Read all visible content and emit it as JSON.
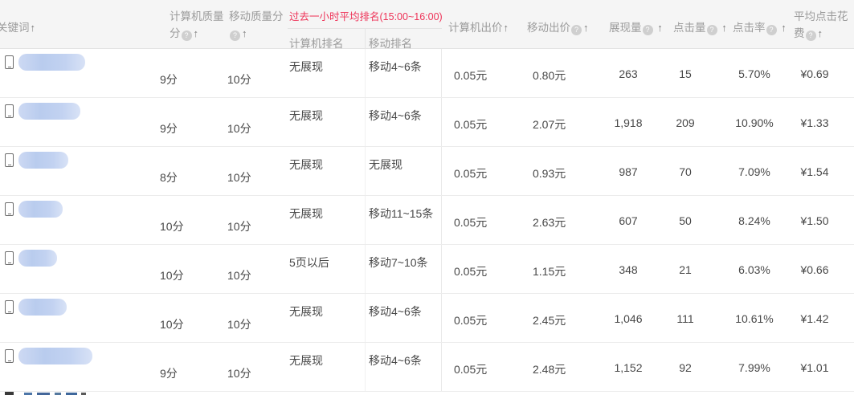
{
  "header": {
    "keyword": "关键词",
    "computer_quality_score": "计算机质量分",
    "mobile_quality_score": "移动质量分",
    "rank_group_title": "过去一小时平均排名(15:00~16:00)",
    "computer_rank": "计算机排名",
    "mobile_rank": "移动排名",
    "computer_bid": "计算机出价",
    "mobile_bid": "移动出价",
    "impressions": "展现量",
    "clicks": "点击量",
    "ctr": "点击率",
    "avg_click_cost": "平均点击花费"
  },
  "icons": {
    "sort_arrow": "↑",
    "help": "?"
  },
  "colors": {
    "accent_red": "#ee3358",
    "keyword_blur_blue": "#c2d2f1",
    "header_bg": "#f5f5f5"
  },
  "rows": [
    {
      "computer_quality": "9分",
      "mobile_quality": "10分",
      "computer_rank": "无展现",
      "mobile_rank": "移动4~6条",
      "computer_bid": "0.05元",
      "mobile_bid": "0.80元",
      "impressions": "263",
      "clicks": "15",
      "ctr": "5.70%",
      "avg_click_cost": "¥0.69"
    },
    {
      "computer_quality": "9分",
      "mobile_quality": "10分",
      "computer_rank": "无展现",
      "mobile_rank": "移动4~6条",
      "computer_bid": "0.05元",
      "mobile_bid": "2.07元",
      "impressions": "1,918",
      "clicks": "209",
      "ctr": "10.90%",
      "avg_click_cost": "¥1.33"
    },
    {
      "computer_quality": "8分",
      "mobile_quality": "10分",
      "computer_rank": "无展现",
      "mobile_rank": "无展现",
      "computer_bid": "0.05元",
      "mobile_bid": "0.93元",
      "impressions": "987",
      "clicks": "70",
      "ctr": "7.09%",
      "avg_click_cost": "¥1.54"
    },
    {
      "computer_quality": "10分",
      "mobile_quality": "10分",
      "computer_rank": "无展现",
      "mobile_rank": "移动11~15条",
      "computer_bid": "0.05元",
      "mobile_bid": "2.63元",
      "impressions": "607",
      "clicks": "50",
      "ctr": "8.24%",
      "avg_click_cost": "¥1.50"
    },
    {
      "computer_quality": "10分",
      "mobile_quality": "10分",
      "computer_rank": "5页以后",
      "mobile_rank": "移动7~10条",
      "computer_bid": "0.05元",
      "mobile_bid": "1.15元",
      "impressions": "348",
      "clicks": "21",
      "ctr": "6.03%",
      "avg_click_cost": "¥0.66"
    },
    {
      "computer_quality": "10分",
      "mobile_quality": "10分",
      "computer_rank": "无展现",
      "mobile_rank": "移动4~6条",
      "computer_bid": "0.05元",
      "mobile_bid": "2.45元",
      "impressions": "1,046",
      "clicks": "111",
      "ctr": "10.61%",
      "avg_click_cost": "¥1.42"
    },
    {
      "computer_quality": "9分",
      "mobile_quality": "10分",
      "computer_rank": "无展现",
      "mobile_rank": "移动4~6条",
      "computer_bid": "0.05元",
      "mobile_bid": "2.48元",
      "impressions": "1,152",
      "clicks": "92",
      "ctr": "7.99%",
      "avg_click_cost": "¥1.01"
    }
  ]
}
